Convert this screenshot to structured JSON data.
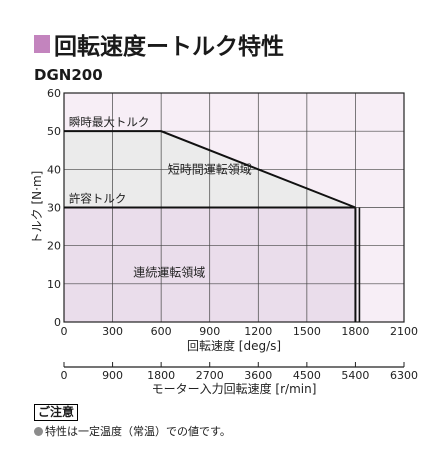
{
  "header": {
    "title": "回転速度ートルク特性",
    "accent_color": "#c384be"
  },
  "model": "DGN200",
  "chart_data": {
    "type": "area",
    "xlabel": "回転速度 [deg/s]",
    "ylabel": "トルク [N·m]",
    "secondary_xlabel": "モーター入力回転速度 [r/min]",
    "xlim": [
      0,
      2100
    ],
    "ylim": [
      0,
      60
    ],
    "x_ticks": [
      0,
      300,
      600,
      900,
      1200,
      1500,
      1800,
      2100
    ],
    "y_ticks": [
      0,
      10,
      20,
      30,
      40,
      50,
      60
    ],
    "secondary_ticks": [
      0,
      900,
      1800,
      2700,
      3600,
      4500,
      5400,
      6300
    ],
    "secondary_xlim": [
      0,
      6300
    ],
    "grid": true,
    "background_color": "#f7eef6",
    "series": [
      {
        "name": "瞬時最大トルク",
        "x": [
          0,
          600,
          1800
        ],
        "y": [
          50,
          50,
          30
        ],
        "fill_color": "#ebebeb"
      },
      {
        "name": "許容トルク",
        "x": [
          0,
          1800
        ],
        "y": [
          30,
          30
        ],
        "fill_color": "#eaddeb"
      }
    ],
    "max_speed": 1800,
    "annotations": [
      {
        "text": "短時間運転領域",
        "x": 900,
        "y": 40
      },
      {
        "text": "連続運転領域",
        "x": 650,
        "y": 13
      }
    ]
  },
  "notice": {
    "label": "ご注意",
    "text": "特性は一定温度（常温）での値です。"
  }
}
